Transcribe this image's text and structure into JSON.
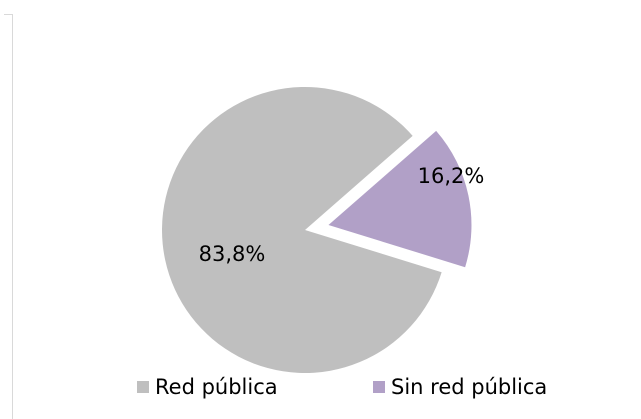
{
  "chart_data": {
    "type": "pie",
    "title": "",
    "slices": [
      {
        "label": "Red pública",
        "value": 83.8,
        "value_label": "83,8%",
        "color": "#bfbfbf",
        "exploded": false
      },
      {
        "label": "Sin red pública",
        "value": 16.2,
        "value_label": "16,2%",
        "color": "#b1a0c7",
        "exploded": true
      }
    ],
    "legend": {
      "position": "bottom"
    }
  }
}
